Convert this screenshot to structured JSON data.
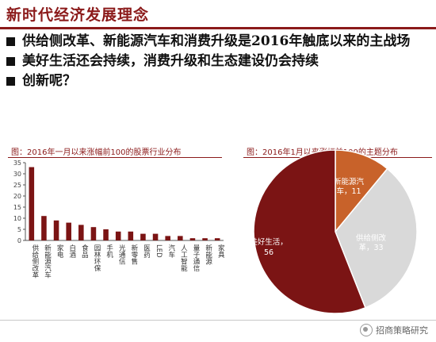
{
  "slide": {
    "title": "新时代经济发展理念",
    "bullets": [
      "供给侧改革、新能源汽车和消费升级是2016年触底以来的主战场",
      "美好生活还会持续，消费升级和生态建设仍会持续",
      "创新呢？"
    ]
  },
  "left_chart_title": "图：2016年一月以来涨幅前100的股票行业分布",
  "right_chart_title": "图：2016年1月以来涨幅前100的主题分布",
  "brand": "招商策略研究",
  "colors": {
    "accent": "#8b1a1a",
    "bar": "#7b1414",
    "pie_orange": "#c8622a",
    "pie_grey": "#d9d9d9"
  },
  "chart_data": [
    {
      "type": "bar",
      "title": "图：2016年一月以来涨幅前100的股票行业分布",
      "categories": [
        "供给侧改革",
        "新能源汽车",
        "家电",
        "白酒",
        "食品",
        "园林环保",
        "手机",
        "光通信",
        "新零售",
        "医药",
        "LED",
        "汽车",
        "人工智能",
        "量子通信",
        "新能源",
        "家具"
      ],
      "values": [
        33,
        11,
        9,
        8,
        7,
        6,
        5,
        4,
        4,
        3,
        3,
        2,
        2,
        1,
        1,
        1
      ],
      "ylim": [
        0,
        35
      ],
      "yticks": [
        0,
        5,
        10,
        15,
        20,
        25,
        30,
        35
      ],
      "grid": false
    },
    {
      "type": "pie",
      "title": "图：2016年1月以来涨幅前100的主题分布",
      "slices": [
        {
          "label": "新能源汽车，11",
          "value": 11,
          "color": "#c8622a"
        },
        {
          "label": "供给侧改革，33",
          "value": 33,
          "color": "#d9d9d9"
        },
        {
          "label": "美好生活，56",
          "value": 56,
          "color": "#7b1414"
        }
      ]
    }
  ]
}
